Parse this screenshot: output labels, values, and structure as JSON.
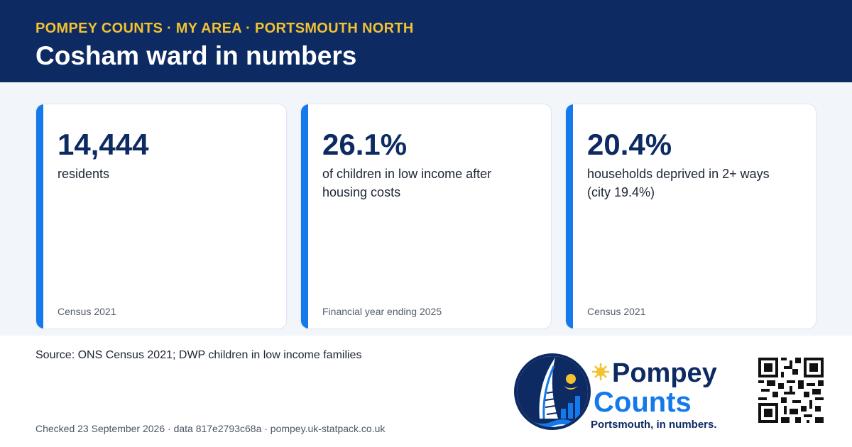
{
  "header": {
    "eyebrow": "POMPEY COUNTS · MY AREA · PORTSMOUTH NORTH",
    "title": "Cosham ward in numbers"
  },
  "stats": [
    {
      "value": "14,444",
      "label": "residents",
      "source": "Census 2021"
    },
    {
      "value": "26.1%",
      "label": "of children in low income after housing costs",
      "source": "Financial year ending 2025"
    },
    {
      "value": "20.4%",
      "label": "households deprived in 2+ ways (city 19.4%)",
      "source": "Census 2021"
    }
  ],
  "footer": {
    "source": "Source: ONS Census 2021; DWP children in low income families",
    "checked": "Checked 23 September 2026 · data 817e2793c68a · pompey.uk-statpack.co.uk"
  },
  "logo": {
    "line1": "Pompey",
    "line2": "Counts",
    "tagline": "Portsmouth, in numbers."
  },
  "colors": {
    "navy": "#0d2a63",
    "gold": "#f2c230",
    "accent_blue": "#1479ea",
    "band": "#f2f5fa"
  },
  "icons": [
    "spinnaker-tower-logo-icon",
    "qr-code-icon"
  ]
}
